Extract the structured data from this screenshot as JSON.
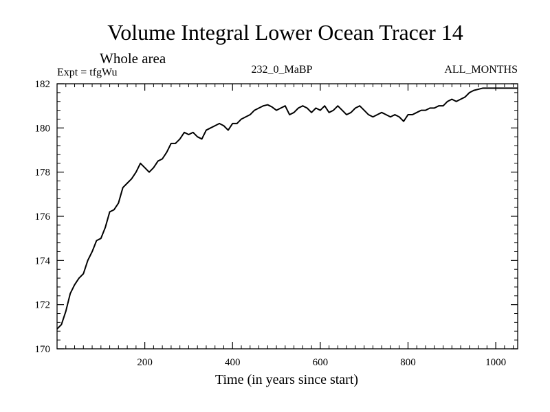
{
  "chart_data": {
    "type": "line",
    "title": "Volume Integral Lower Ocean Tracer 14",
    "subtitle": "Whole area",
    "expt_label": "Expt = tfgWu",
    "center_label": "232_0_MaBP",
    "right_label": "ALL_MONTHS",
    "xlabel": "Time (in years since start)",
    "ylabel": "",
    "xlim": [
      0,
      1050
    ],
    "ylim": [
      170,
      182
    ],
    "xticks": [
      200,
      400,
      600,
      800,
      1000
    ],
    "yticks": [
      170,
      172,
      174,
      176,
      178,
      180,
      182
    ],
    "x_minor_step": 20,
    "y_minor_step": 0.4,
    "grid": false,
    "line_color": "#000000",
    "series": [
      {
        "name": "Volume Integral Lower Ocean Tracer 14",
        "x": [
          0,
          10,
          20,
          30,
          40,
          50,
          60,
          70,
          80,
          90,
          100,
          110,
          120,
          130,
          140,
          150,
          160,
          170,
          180,
          190,
          200,
          210,
          220,
          230,
          240,
          250,
          260,
          270,
          280,
          290,
          300,
          310,
          320,
          330,
          340,
          350,
          360,
          370,
          380,
          390,
          400,
          410,
          420,
          430,
          440,
          450,
          460,
          470,
          480,
          490,
          500,
          510,
          520,
          530,
          540,
          550,
          560,
          570,
          580,
          590,
          600,
          610,
          620,
          630,
          640,
          650,
          660,
          670,
          680,
          690,
          700,
          710,
          720,
          730,
          740,
          750,
          760,
          770,
          780,
          790,
          800,
          810,
          820,
          830,
          840,
          850,
          860,
          870,
          880,
          890,
          900,
          910,
          920,
          930,
          940,
          950,
          960,
          970,
          980,
          990,
          1000,
          1010,
          1020,
          1030,
          1040,
          1050
        ],
        "values": [
          170.9,
          171.1,
          171.7,
          172.5,
          172.9,
          173.2,
          173.4,
          174.0,
          174.4,
          174.9,
          175.0,
          175.5,
          176.2,
          176.3,
          176.6,
          177.3,
          177.5,
          177.7,
          178.0,
          178.4,
          178.2,
          178.0,
          178.2,
          178.5,
          178.6,
          178.9,
          179.3,
          179.3,
          179.5,
          179.8,
          179.7,
          179.8,
          179.6,
          179.5,
          179.9,
          180.0,
          180.1,
          180.2,
          180.1,
          179.9,
          180.2,
          180.2,
          180.4,
          180.5,
          180.6,
          180.8,
          180.9,
          181.0,
          181.05,
          180.95,
          180.8,
          180.9,
          181.0,
          180.6,
          180.7,
          180.9,
          181.0,
          180.9,
          180.7,
          180.9,
          180.8,
          181.0,
          180.7,
          180.8,
          181.0,
          180.8,
          180.6,
          180.7,
          180.9,
          181.0,
          180.8,
          180.6,
          180.5,
          180.6,
          180.7,
          180.6,
          180.5,
          180.6,
          180.5,
          180.3,
          180.6,
          180.6,
          180.7,
          180.8,
          180.8,
          180.9,
          180.9,
          181.0,
          181.0,
          181.2,
          181.3,
          181.2,
          181.3,
          181.4,
          181.6,
          181.7,
          181.75,
          181.8,
          181.8,
          181.8,
          181.8,
          181.8,
          181.8,
          181.8,
          181.8,
          181.8
        ]
      }
    ]
  }
}
